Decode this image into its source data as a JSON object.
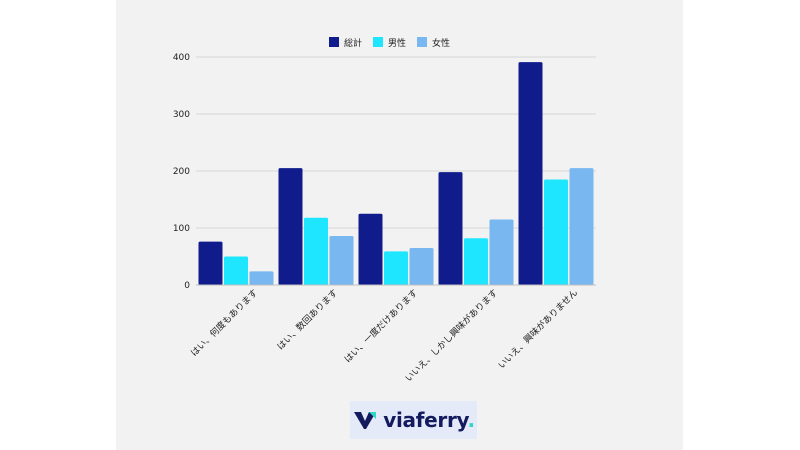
{
  "chart_data": {
    "type": "bar",
    "categories": [
      "はい、何度もあります",
      "はい、数回あります",
      "はい、一度だけあります",
      "いいえ、しかし興味があります",
      "いいえ、興味がありません"
    ],
    "series": [
      {
        "name": "総計",
        "values": [
          76,
          205,
          125,
          198,
          391
        ]
      },
      {
        "name": "男性",
        "values": [
          50,
          118,
          59,
          82,
          185
        ]
      },
      {
        "name": "女性",
        "values": [
          24,
          86,
          65,
          115,
          205
        ]
      }
    ],
    "title": "",
    "xlabel": "",
    "ylabel": "",
    "ylim": [
      0,
      400
    ],
    "yticks": [
      0,
      100,
      200,
      300,
      400
    ],
    "grid": true,
    "legend_position": "top",
    "colors": [
      "#101b8c",
      "#1ee6ff",
      "#78b7ef"
    ]
  },
  "legend": {
    "total": "総計",
    "male": "男性",
    "female": "女性"
  },
  "logo": {
    "name": "viaferry",
    "dot": "."
  }
}
